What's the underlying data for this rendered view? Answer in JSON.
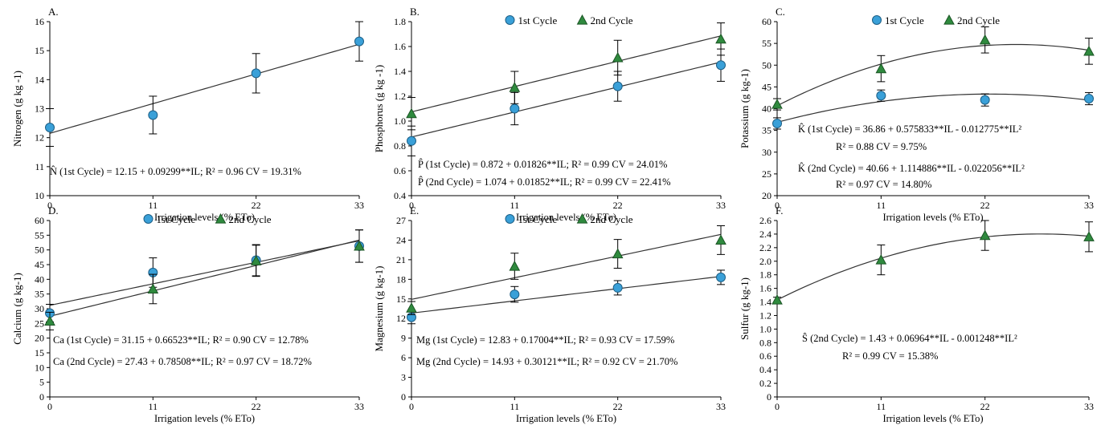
{
  "figure": {
    "x_axis_label": "Irrigation levels (% ETo)",
    "legend": {
      "cycle1": "1st Cycle",
      "cycle2": "2nd Cycle"
    },
    "colors": {
      "cycle1": "#3aa0d8",
      "cycle2": "#2f8a3e",
      "line": "#333333"
    }
  },
  "chart_data": [
    {
      "type": "scatter",
      "panel": "A.",
      "ylabel": "Nitrogen (g kg -1)",
      "xlabel": "Irrigation levels (% ETo)",
      "x": [
        0,
        11,
        22,
        33
      ],
      "xlim": [
        0,
        33
      ],
      "ylim": [
        10,
        16
      ],
      "yticks": [
        "10",
        "11",
        "12",
        "13",
        "14",
        "15",
        "16"
      ],
      "legend": false,
      "series": [
        {
          "name": "1st Cycle",
          "values": [
            12.35,
            12.78,
            14.22,
            15.32
          ],
          "errors": [
            0.65,
            0.65,
            0.68,
            0.68
          ],
          "fit": [
            12.15,
            0.09299,
            0
          ]
        }
      ],
      "equations": [
        "N̂ (1st Cycle) = 12.15 + 0.09299**IL; R² = 0.96   CV = 19.31%"
      ]
    },
    {
      "type": "scatter",
      "panel": "B.",
      "ylabel": "Phosphorus (g kg -1)",
      "xlabel": "Irrigation levels (% ETo)",
      "x": [
        0,
        11,
        22,
        33
      ],
      "xlim": [
        0,
        33
      ],
      "ylim": [
        0.4,
        1.8
      ],
      "yticks": [
        "0.4",
        "0.6",
        "0.8",
        "1.0",
        "1.2",
        "1.4",
        "1.6",
        "1.8"
      ],
      "legend": true,
      "series": [
        {
          "name": "1st Cycle",
          "values": [
            0.84,
            1.1,
            1.28,
            1.45
          ],
          "errors": [
            0.12,
            0.13,
            0.12,
            0.13
          ],
          "fit": [
            0.872,
            0.01826,
            0
          ]
        },
        {
          "name": "2nd Cycle",
          "values": [
            1.06,
            1.27,
            1.51,
            1.66
          ],
          "errors": [
            0.13,
            0.13,
            0.14,
            0.13
          ],
          "fit": [
            1.074,
            0.01852,
            0
          ]
        }
      ],
      "equations": [
        "P̂ (1st Cycle) = 0.872 + 0.01826**IL; R² = 0.99   CV = 24.01%",
        "P̂ (2nd Cycle) = 1.074 + 0.01852**IL; R² = 0.99   CV = 22.41%"
      ]
    },
    {
      "type": "scatter",
      "panel": "C.",
      "ylabel": "Potassium (g kg-1)",
      "xlabel": "Irrigation levels (% ETo)",
      "x": [
        0,
        11,
        22,
        33
      ],
      "xlim": [
        0,
        33
      ],
      "ylim": [
        20,
        60
      ],
      "yticks": [
        "20",
        "25",
        "30",
        "35",
        "40",
        "45",
        "50",
        "55",
        "60"
      ],
      "legend": true,
      "series": [
        {
          "name": "1st Cycle",
          "values": [
            36.6,
            43.0,
            42.0,
            42.3
          ],
          "errors": [
            1.3,
            1.3,
            1.4,
            1.4
          ],
          "fit": [
            36.86,
            0.575833,
            -0.012775
          ]
        },
        {
          "name": "2nd Cycle",
          "values": [
            41.0,
            49.2,
            55.8,
            53.2
          ],
          "errors": [
            1.3,
            3.0,
            3.0,
            3.0
          ],
          "fit": [
            40.66,
            1.114886,
            -0.022056
          ]
        }
      ],
      "equations": [
        "K̂ (1st Cycle) = 36.86 + 0.575833**IL - 0.012775**IL²",
        "R² = 0.88    CV = 9.75%",
        "K̂ (2nd Cycle)  = 40.66 + 1.114886**IL - 0.022056**IL²",
        "R² = 0.97    CV = 14.80%"
      ]
    },
    {
      "type": "scatter",
      "panel": "D.",
      "ylabel": "Calcium (g kg-1)",
      "xlabel": "Irrigation levels (% ETo)",
      "x": [
        0,
        11,
        22,
        33
      ],
      "xlim": [
        0,
        33
      ],
      "ylim": [
        0,
        60
      ],
      "yticks": [
        "0",
        "5",
        "10",
        "15",
        "20",
        "25",
        "30",
        "35",
        "40",
        "45",
        "50",
        "55",
        "60"
      ],
      "legend": true,
      "series": [
        {
          "name": "1st Cycle",
          "values": [
            28.5,
            42.3,
            46.5,
            51.3
          ],
          "errors": [
            3.0,
            5.0,
            5.3,
            5.5
          ],
          "fit": [
            31.15,
            0.66523,
            0
          ]
        },
        {
          "name": "2nd Cycle",
          "values": [
            25.8,
            36.7,
            46.3,
            51.3
          ],
          "errors": [
            3.0,
            5.0,
            5.3,
            5.5
          ],
          "fit": [
            27.43,
            0.78508,
            0
          ]
        }
      ],
      "equations": [
        "Ca (1st Cycle)  = 31.15 + 0.66523**IL; R² = 0.90     CV = 12.78%",
        "Ca (2nd Cycle) = 27.43 + 0.78508**IL; R² = 0.97     CV = 18.72%"
      ]
    },
    {
      "type": "scatter",
      "panel": "E.",
      "ylabel": "Magnesium (g kg-1)",
      "xlabel": "Irrigation levels (% ETo)",
      "x": [
        0,
        11,
        22,
        33
      ],
      "xlim": [
        0,
        33
      ],
      "ylim": [
        0,
        27
      ],
      "yticks": [
        "0",
        "3",
        "6",
        "9",
        "12",
        "15",
        "18",
        "21",
        "24",
        "27"
      ],
      "legend": true,
      "series": [
        {
          "name": "1st Cycle",
          "values": [
            12.2,
            15.7,
            16.7,
            18.3
          ],
          "errors": [
            1.0,
            1.2,
            1.1,
            1.1
          ],
          "fit": [
            12.83,
            0.17004,
            0
          ]
        },
        {
          "name": "2nd Cycle",
          "values": [
            13.6,
            20.0,
            21.9,
            24.0
          ],
          "errors": [
            1.0,
            2.0,
            2.2,
            2.2
          ],
          "fit": [
            14.93,
            0.30121,
            0
          ]
        }
      ],
      "equations": [
        "Mg (1st Cycle) = 12.83 + 0.17004**IL; R² = 0.93    CV = 17.59%",
        "Mg (2nd Cycle) = 14.93 + 0.30121**IL; R² = 0.92    CV = 21.70%"
      ]
    },
    {
      "type": "scatter",
      "panel": "F.",
      "ylabel": "Sulfur (g kg-1)",
      "xlabel": "Irrigation levels (% ETo)",
      "x": [
        0,
        11,
        22,
        33
      ],
      "xlim": [
        0,
        33
      ],
      "ylim": [
        0,
        2.6
      ],
      "yticks": [
        "0",
        "0.2",
        "0.4",
        "0.6",
        "0.8",
        "1.0",
        "1.2",
        "1.4",
        "1.6",
        "1.8",
        "2.0",
        "2.2",
        "2.4",
        "2.6"
      ],
      "legend": false,
      "series": [
        {
          "name": "2nd Cycle",
          "values": [
            1.43,
            2.02,
            2.38,
            2.36
          ],
          "errors": [
            0.04,
            0.22,
            0.22,
            0.22
          ],
          "fit": [
            1.43,
            0.06964,
            -0.001248
          ]
        }
      ],
      "equations": [
        "Ŝ (2nd Cycle) = 1.43 + 0.06964**IL - 0.001248**IL²",
        "R² = 0.99    CV = 15.38%"
      ]
    }
  ]
}
